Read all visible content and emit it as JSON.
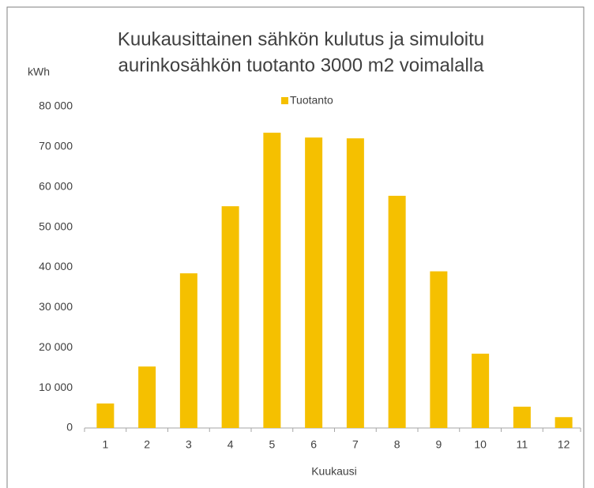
{
  "chart_data": {
    "type": "bar",
    "title": [
      "Kuukausittainen sähkön kulutus ja simuloitu",
      "aurinkosähkön tuotanto 3000 m2 voimalalla"
    ],
    "y_label": "kWh",
    "x_label": "Kuukausi",
    "categories": [
      "1",
      "2",
      "3",
      "4",
      "5",
      "6",
      "7",
      "8",
      "9",
      "10",
      "11",
      "12"
    ],
    "series": [
      {
        "name": "Tuotanto",
        "color": "#f5c000",
        "values": [
          6100,
          15300,
          38500,
          55200,
          73500,
          72300,
          72100,
          57800,
          39000,
          18500,
          5300,
          2700
        ]
      }
    ],
    "ylim": [
      0,
      80000
    ],
    "yticks": [
      0,
      {
        "value": 10000,
        "label": "10 000"
      },
      {
        "value": 20000,
        "label": "20 000"
      },
      {
        "value": 30000,
        "label": "30 000"
      },
      {
        "value": 40000,
        "label": "40 000"
      },
      {
        "value": 50000,
        "label": "50 000"
      },
      {
        "value": 60000,
        "label": "60 000"
      },
      {
        "value": 70000,
        "label": "70 000"
      },
      {
        "value": 80000,
        "label": "80 000"
      }
    ],
    "grid": false,
    "legend": "top"
  }
}
